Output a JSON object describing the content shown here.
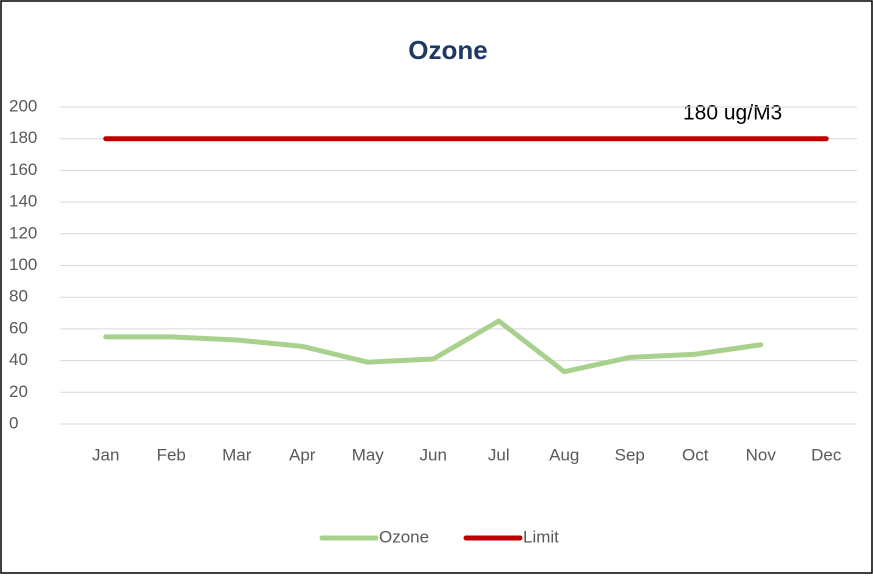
{
  "chart_data": {
    "type": "line",
    "title": "Ozone",
    "categories": [
      "Jan",
      "Feb",
      "Mar",
      "Apr",
      "May",
      "Jun",
      "Jul",
      "Aug",
      "Sep",
      "Oct",
      "Nov",
      "Dec"
    ],
    "series": [
      {
        "name": "Ozone",
        "color": "#a9d18e",
        "values": [
          55,
          55,
          53,
          49,
          39,
          41,
          65,
          33,
          42,
          44,
          50,
          null
        ]
      },
      {
        "name": "Limit",
        "color": "#c00000",
        "values": [
          180,
          180,
          180,
          180,
          180,
          180,
          180,
          180,
          180,
          180,
          180,
          180
        ]
      }
    ],
    "annotation": "180 ug/M3",
    "ylim": [
      0,
      200
    ],
    "yticks": [
      0,
      20,
      40,
      60,
      80,
      100,
      120,
      140,
      160,
      180,
      200
    ],
    "grid": true,
    "legend": "bottom"
  }
}
